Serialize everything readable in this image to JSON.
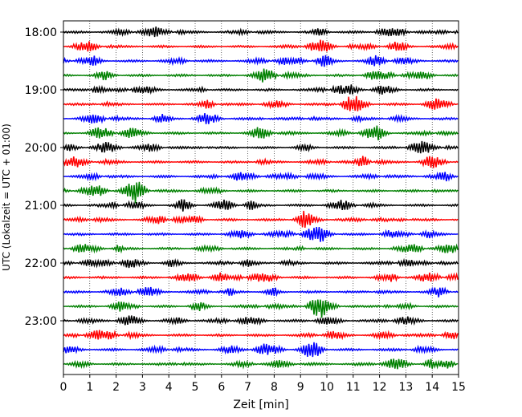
{
  "chart_data": {
    "type": "line",
    "title": "",
    "xlabel": "Zeit  [min]",
    "ylabel": "UTC (Lokalzeit = UTC + 01:00)",
    "xlim": [
      0,
      15
    ],
    "x_ticks": [
      "0",
      "1",
      "2",
      "3",
      "4",
      "5",
      "6",
      "7",
      "8",
      "9",
      "10",
      "11",
      "12",
      "13",
      "14",
      "15"
    ],
    "y_tick_labels": [
      "18:00",
      "19:00",
      "20:00",
      "21:00",
      "22:00",
      "23:00"
    ],
    "traces_per_hour": 4,
    "minutes_per_trace": 15,
    "start_time": "18:00",
    "trace_colors": [
      "#000000",
      "#ff0000",
      "#0000ff",
      "#008000"
    ],
    "grid": "vertical dotted",
    "series": [
      {
        "start": "18:00"
      },
      {
        "start": "18:15"
      },
      {
        "start": "18:30"
      },
      {
        "start": "18:45"
      },
      {
        "start": "19:00"
      },
      {
        "start": "19:15"
      },
      {
        "start": "19:30"
      },
      {
        "start": "19:45"
      },
      {
        "start": "20:00"
      },
      {
        "start": "20:15"
      },
      {
        "start": "20:30"
      },
      {
        "start": "20:45"
      },
      {
        "start": "21:00"
      },
      {
        "start": "21:15"
      },
      {
        "start": "21:30"
      },
      {
        "start": "21:45"
      },
      {
        "start": "22:00"
      },
      {
        "start": "22:15"
      },
      {
        "start": "22:30"
      },
      {
        "start": "22:45"
      },
      {
        "start": "23:00"
      },
      {
        "start": "23:15"
      },
      {
        "start": "23:30"
      },
      {
        "start": "23:45"
      }
    ]
  }
}
